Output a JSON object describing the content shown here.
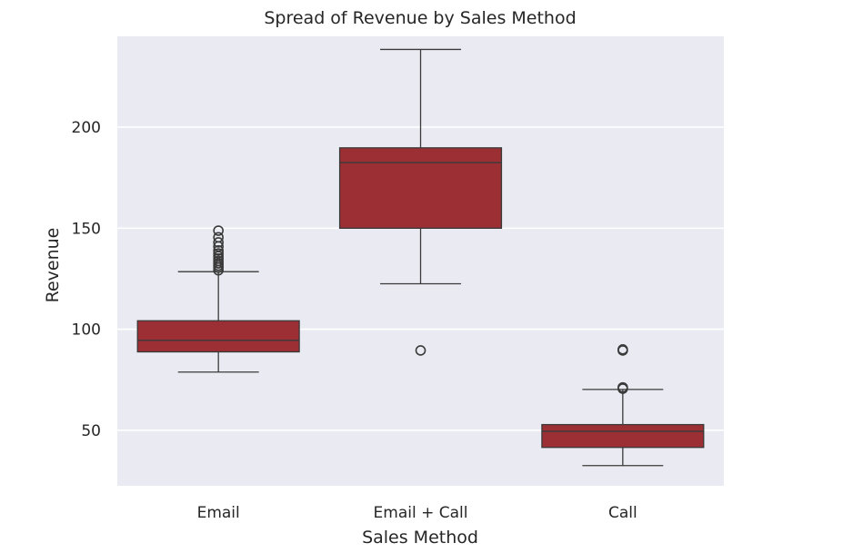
{
  "chart_data": {
    "type": "box",
    "title": "Spread of Revenue by Sales Method",
    "xlabel": "Sales Method",
    "ylabel": "Revenue",
    "ylim": [
      22.5,
      245
    ],
    "yticks": [
      50,
      100,
      150,
      200
    ],
    "grid": true,
    "box_color": "#9b2f33",
    "line_color": "#3a3a3a",
    "background_color": "#eaeaf2",
    "categories": [
      "Email",
      "Email + Call",
      "Call"
    ],
    "boxes": [
      {
        "category": "Email",
        "whisker_low": 78.8,
        "q1": 88.8,
        "median": 94.5,
        "q3": 104.2,
        "whisker_high": 128.5,
        "outliers": [
          129.2,
          130.5,
          131.5,
          132.6,
          133.8,
          135,
          136.2,
          137.5,
          139,
          141,
          143,
          145.5,
          148.8
        ]
      },
      {
        "category": "Email + Call",
        "whisker_low": 122.5,
        "q1": 150,
        "median": 182.5,
        "q3": 189.8,
        "whisker_high": 238.5,
        "outliers": [
          89.5
        ]
      },
      {
        "category": "Call",
        "whisker_low": 32.5,
        "q1": 41.5,
        "median": 49.5,
        "q3": 52.8,
        "whisker_high": 70.2,
        "outliers": [
          70.6,
          71.2,
          89.5,
          90
        ]
      }
    ]
  }
}
